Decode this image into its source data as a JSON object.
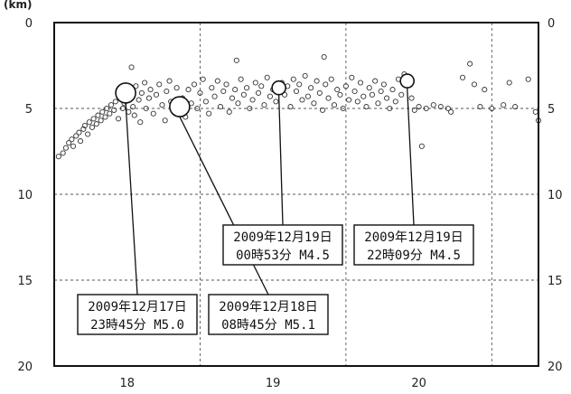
{
  "chart_data": {
    "type": "scatter",
    "title": "",
    "unit_label": "(km)",
    "xlabel": "",
    "ylabel": "",
    "xlim": [
      17.5,
      20.82
    ],
    "ylim": [
      0,
      20
    ],
    "y_inverted": true,
    "grid": true,
    "x_gridlines": [
      17.5,
      18.5,
      19.5,
      20.5
    ],
    "y_gridlines": [
      5,
      10,
      15
    ],
    "x_tick_labels": [
      "18",
      "19",
      "20"
    ],
    "x_tick_positions": [
      18,
      19,
      20
    ],
    "y_tick_labels": [
      "0",
      "5",
      "10",
      "15",
      "20"
    ],
    "y_tick_positions": [
      0,
      5,
      10,
      15,
      20
    ],
    "labeled_events": [
      {
        "label_line1": "2009年12月17日",
        "label_line2": "23時45分 M5.0",
        "date": 17.99,
        "depth": 4.1,
        "magnitude": 5.0
      },
      {
        "label_line1": "2009年12月18日",
        "label_line2": "08時45分 M5.1",
        "date": 18.36,
        "depth": 4.9,
        "magnitude": 5.1
      },
      {
        "label_line1": "2009年12月19日",
        "label_line2": "00時53分 M4.5",
        "date": 19.04,
        "depth": 3.8,
        "magnitude": 4.5
      },
      {
        "label_line1": "2009年12月19日",
        "label_line2": "22時09分 M4.5",
        "date": 19.92,
        "depth": 3.4,
        "magnitude": 4.5
      }
    ],
    "series": [
      {
        "points": [
          [
            17.53,
            7.8
          ],
          [
            17.56,
            7.6
          ],
          [
            17.58,
            7.3
          ],
          [
            17.6,
            7.0
          ],
          [
            17.62,
            6.8
          ],
          [
            17.63,
            7.2
          ],
          [
            17.65,
            6.6
          ],
          [
            17.67,
            6.4
          ],
          [
            17.68,
            6.9
          ],
          [
            17.7,
            6.2
          ],
          [
            17.71,
            6.0
          ],
          [
            17.73,
            6.5
          ],
          [
            17.74,
            5.8
          ],
          [
            17.76,
            6.1
          ],
          [
            17.77,
            5.6
          ],
          [
            17.79,
            5.9
          ],
          [
            17.8,
            5.4
          ],
          [
            17.82,
            5.7
          ],
          [
            17.83,
            5.2
          ],
          [
            17.85,
            5.5
          ],
          [
            17.86,
            5.0
          ],
          [
            17.88,
            5.3
          ],
          [
            17.89,
            4.8
          ],
          [
            17.91,
            5.1
          ],
          [
            17.92,
            4.6
          ],
          [
            17.94,
            5.6
          ],
          [
            17.95,
            4.4
          ],
          [
            17.97,
            5.0
          ],
          [
            17.98,
            4.7
          ],
          [
            18.0,
            3.9
          ],
          [
            18.01,
            5.2
          ],
          [
            18.02,
            4.3
          ],
          [
            18.03,
            2.6
          ],
          [
            18.04,
            4.9
          ],
          [
            18.05,
            5.4
          ],
          [
            18.06,
            3.7
          ],
          [
            18.08,
            4.5
          ],
          [
            18.09,
            5.8
          ],
          [
            18.1,
            4.1
          ],
          [
            18.12,
            3.5
          ],
          [
            18.13,
            5.0
          ],
          [
            18.15,
            4.4
          ],
          [
            18.16,
            3.9
          ],
          [
            18.18,
            5.3
          ],
          [
            18.2,
            4.2
          ],
          [
            18.22,
            3.6
          ],
          [
            18.24,
            4.8
          ],
          [
            18.26,
            5.7
          ],
          [
            18.27,
            4.0
          ],
          [
            18.29,
            3.4
          ],
          [
            18.3,
            4.6
          ],
          [
            18.32,
            5.1
          ],
          [
            18.34,
            3.8
          ],
          [
            18.38,
            4.4
          ],
          [
            18.4,
            5.5
          ],
          [
            18.42,
            3.9
          ],
          [
            18.44,
            4.7
          ],
          [
            18.46,
            3.6
          ],
          [
            18.48,
            5.0
          ],
          [
            18.5,
            4.1
          ],
          [
            18.52,
            3.3
          ],
          [
            18.54,
            4.6
          ],
          [
            18.56,
            5.3
          ],
          [
            18.58,
            3.8
          ],
          [
            18.6,
            4.3
          ],
          [
            18.62,
            3.4
          ],
          [
            18.64,
            4.9
          ],
          [
            18.66,
            4.0
          ],
          [
            18.68,
            3.6
          ],
          [
            18.7,
            5.2
          ],
          [
            18.72,
            4.4
          ],
          [
            18.74,
            3.9
          ],
          [
            18.76,
            4.7
          ],
          [
            18.78,
            3.3
          ],
          [
            18.8,
            4.2
          ],
          [
            18.82,
            3.8
          ],
          [
            18.84,
            5.0
          ],
          [
            18.86,
            4.5
          ],
          [
            18.88,
            3.5
          ],
          [
            18.9,
            4.1
          ],
          [
            18.92,
            3.7
          ],
          [
            18.94,
            4.8
          ],
          [
            18.96,
            3.2
          ],
          [
            18.98,
            4.3
          ],
          [
            19.0,
            3.9
          ],
          [
            19.02,
            4.6
          ],
          [
            19.06,
            3.5
          ],
          [
            19.08,
            4.2
          ],
          [
            19.1,
            3.7
          ],
          [
            19.12,
            4.9
          ],
          [
            19.14,
            3.3
          ],
          [
            19.16,
            4.0
          ],
          [
            19.18,
            3.6
          ],
          [
            19.2,
            4.5
          ],
          [
            19.22,
            3.1
          ],
          [
            19.24,
            4.3
          ],
          [
            19.26,
            3.8
          ],
          [
            19.28,
            4.7
          ],
          [
            19.3,
            3.4
          ],
          [
            19.32,
            4.1
          ],
          [
            19.34,
            5.1
          ],
          [
            19.36,
            3.6
          ],
          [
            19.38,
            4.4
          ],
          [
            19.4,
            3.3
          ],
          [
            19.42,
            4.8
          ],
          [
            19.44,
            3.9
          ],
          [
            19.46,
            4.2
          ],
          [
            19.48,
            5.0
          ],
          [
            19.5,
            3.7
          ],
          [
            19.52,
            4.5
          ],
          [
            19.54,
            3.2
          ],
          [
            19.56,
            4.0
          ],
          [
            19.58,
            4.6
          ],
          [
            19.6,
            3.5
          ],
          [
            19.62,
            4.3
          ],
          [
            19.64,
            4.9
          ],
          [
            19.66,
            3.8
          ],
          [
            19.68,
            4.2
          ],
          [
            19.7,
            3.4
          ],
          [
            19.72,
            4.7
          ],
          [
            19.74,
            4.0
          ],
          [
            19.76,
            3.6
          ],
          [
            19.78,
            4.4
          ],
          [
            19.8,
            5.0
          ],
          [
            19.82,
            3.9
          ],
          [
            19.84,
            4.6
          ],
          [
            19.86,
            3.3
          ],
          [
            19.88,
            4.2
          ],
          [
            19.9,
            3.0
          ],
          [
            19.95,
            4.4
          ],
          [
            19.97,
            5.1
          ],
          [
            20.0,
            4.9
          ],
          [
            20.02,
            7.2
          ],
          [
            20.05,
            5.0
          ],
          [
            20.1,
            4.8
          ],
          [
            20.15,
            4.9
          ],
          [
            20.2,
            5.0
          ],
          [
            20.22,
            5.2
          ],
          [
            20.3,
            3.2
          ],
          [
            20.35,
            2.4
          ],
          [
            20.38,
            3.6
          ],
          [
            20.42,
            4.9
          ],
          [
            20.45,
            3.9
          ],
          [
            20.5,
            5.0
          ],
          [
            20.58,
            4.8
          ],
          [
            20.62,
            3.5
          ],
          [
            20.66,
            4.9
          ],
          [
            20.75,
            3.3
          ],
          [
            20.8,
            5.2
          ],
          [
            20.82,
            5.7
          ],
          [
            19.35,
            2.0
          ],
          [
            18.75,
            2.2
          ]
        ]
      }
    ]
  }
}
